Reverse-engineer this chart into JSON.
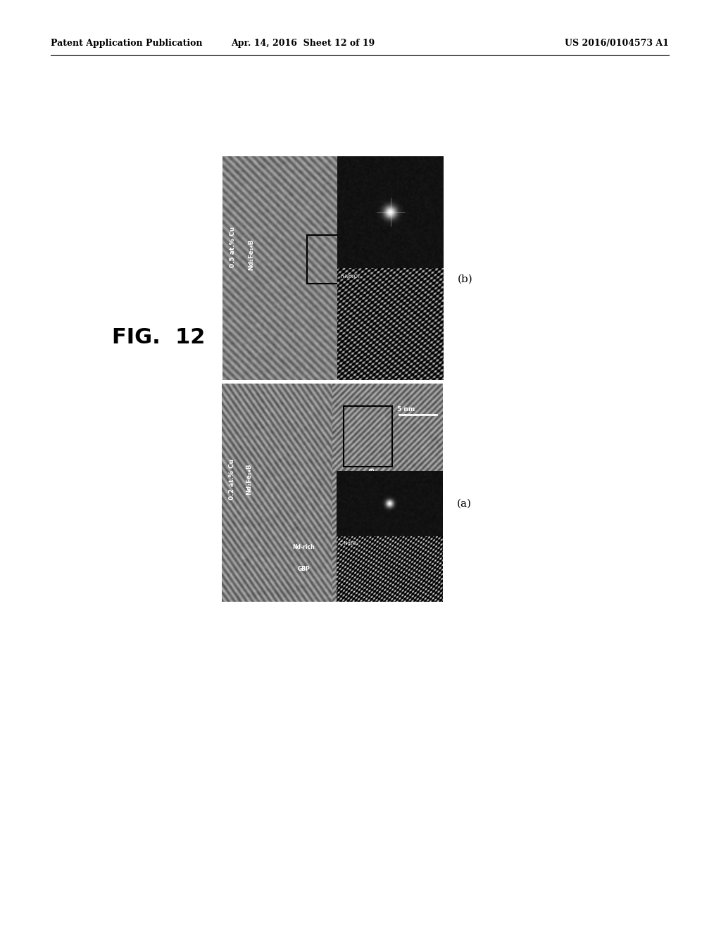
{
  "background_color": "#ffffff",
  "header_left": "Patent Application Publication",
  "header_center": "Apr. 14, 2016  Sheet 12 of 19",
  "header_right": "US 2016/0104573 A1",
  "fig_label": "FIG.  12",
  "image_a_label": "(a)",
  "image_b_label": "(b)"
}
